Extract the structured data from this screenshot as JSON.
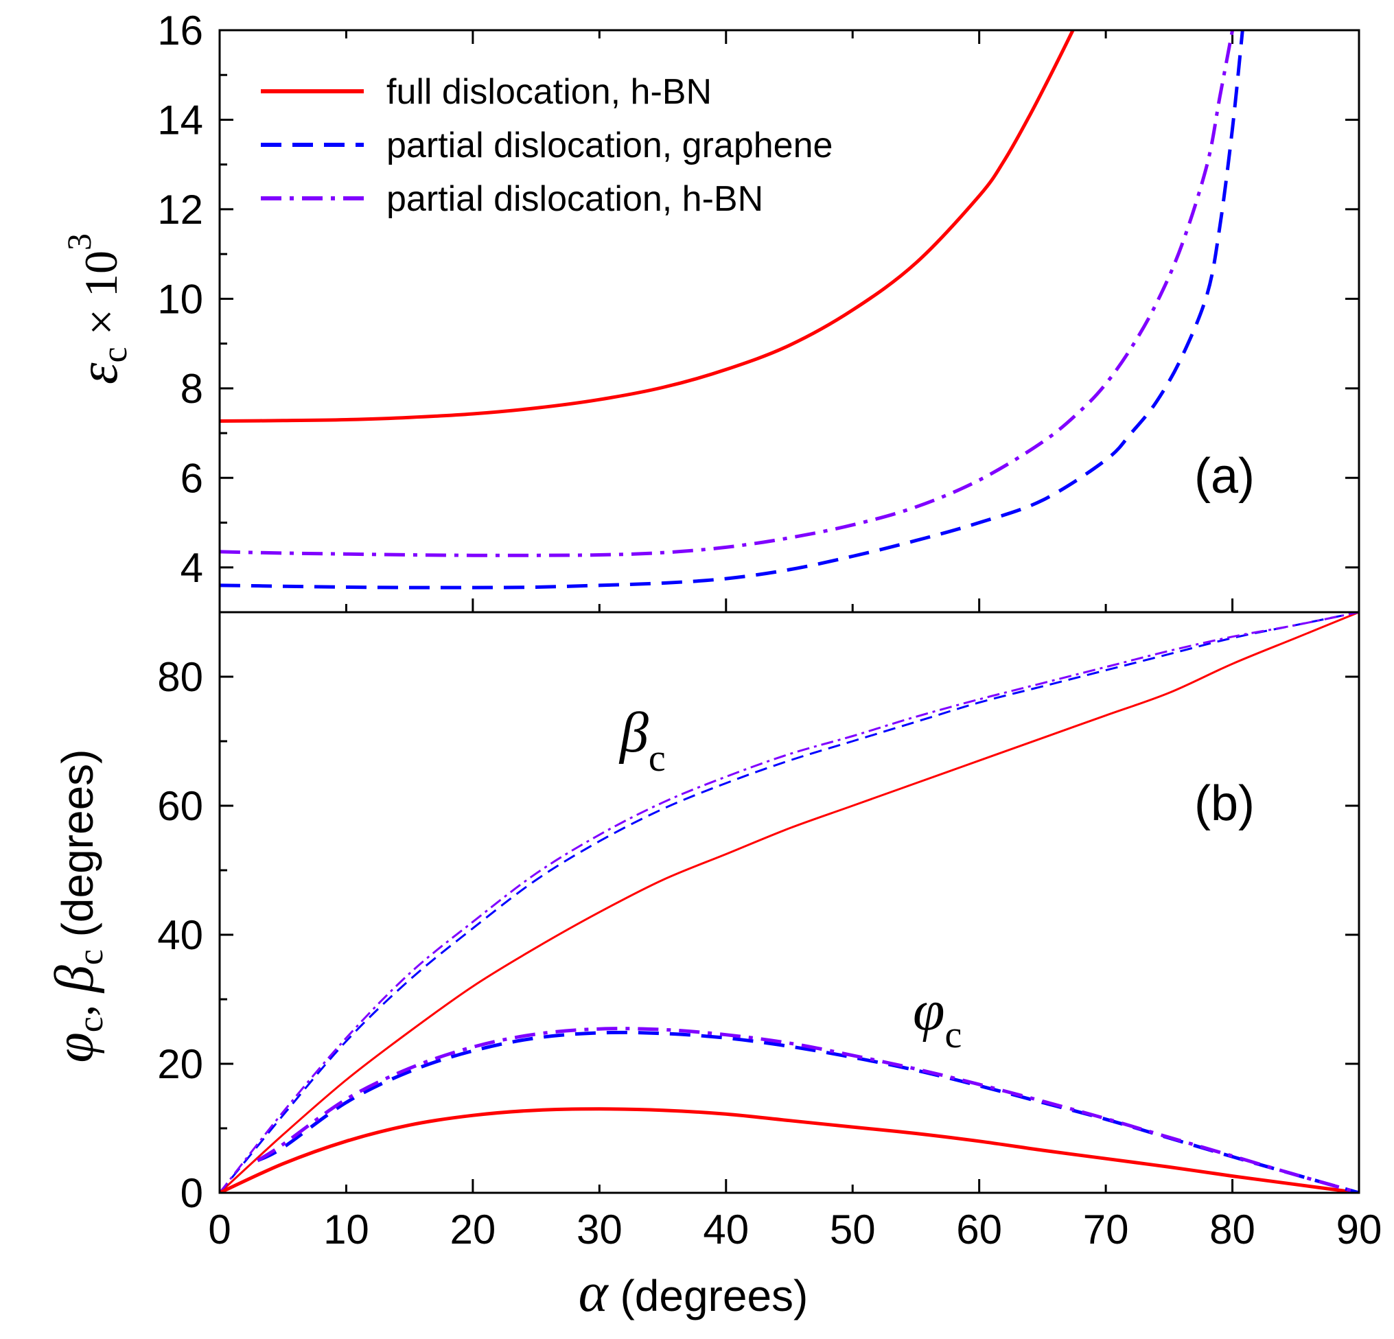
{
  "colors": {
    "full_hbn": "#ff0000",
    "partial_graphene": "#0000ff",
    "partial_hbn": "#8000ff",
    "axis": "#000000"
  },
  "chart_data": [
    {
      "id": "panel_a",
      "type": "line",
      "panel_label": "(a)",
      "ylabel": {
        "symbol": "ε",
        "subscript": "c",
        "suffix": " × 10",
        "superscript": "3"
      },
      "xlim": [
        0,
        90
      ],
      "ylim": [
        3,
        16
      ],
      "yticks": [
        4,
        6,
        8,
        10,
        12,
        14,
        16
      ],
      "yticks_minor": [
        3,
        5,
        7,
        9,
        11,
        13,
        15
      ],
      "xticks": [
        0,
        10,
        20,
        30,
        40,
        50,
        60,
        70,
        80,
        90
      ],
      "legend": {
        "position": "top-left",
        "entries": [
          {
            "series": "full",
            "label": "full dislocation, h-BN"
          },
          {
            "series": "partial_graphene",
            "label": "partial dislocation, graphene"
          },
          {
            "series": "partial_hbn",
            "label": "partial dislocation, h-BN"
          }
        ]
      },
      "series": [
        {
          "key": "full",
          "name": "full dislocation, h-BN",
          "color": "#ff0000",
          "style": "solid",
          "x": [
            0,
            5,
            10,
            15,
            20,
            25,
            30,
            35,
            40,
            45,
            50,
            55,
            60,
            62,
            64,
            66,
            67.4
          ],
          "y": [
            7.27,
            7.28,
            7.3,
            7.35,
            7.43,
            7.56,
            7.75,
            8.02,
            8.42,
            8.96,
            9.75,
            10.8,
            12.3,
            13.1,
            14.1,
            15.2,
            16
          ]
        },
        {
          "key": "partial_graphene",
          "name": "partial dislocation, graphene",
          "color": "#0000ff",
          "style": "dashed",
          "x": [
            0,
            5,
            10,
            15,
            20,
            25,
            30,
            35,
            40,
            45,
            50,
            55,
            60,
            65,
            70,
            72,
            74,
            76,
            78,
            79,
            80,
            80.8
          ],
          "y": [
            3.6,
            3.58,
            3.56,
            3.55,
            3.55,
            3.56,
            3.6,
            3.65,
            3.75,
            3.95,
            4.25,
            4.6,
            5.0,
            5.5,
            6.4,
            7.0,
            7.7,
            8.7,
            10.1,
            11.6,
            13.8,
            16
          ]
        },
        {
          "key": "partial_hbn",
          "name": "partial dislocation, h-BN",
          "color": "#8000ff",
          "style": "dashdot",
          "x": [
            0,
            5,
            10,
            15,
            20,
            25,
            30,
            35,
            40,
            45,
            50,
            55,
            60,
            65,
            68,
            70,
            72,
            74,
            76,
            78,
            79,
            80
          ],
          "y": [
            4.35,
            4.32,
            4.3,
            4.28,
            4.27,
            4.27,
            4.28,
            4.33,
            4.45,
            4.66,
            4.95,
            5.35,
            5.95,
            6.8,
            7.5,
            8.1,
            8.9,
            9.9,
            11.2,
            13.0,
            14.5,
            16
          ]
        }
      ]
    },
    {
      "id": "panel_b",
      "type": "line",
      "panel_label": "(b)",
      "xlabel": {
        "symbol": "α",
        "text": " (degrees)"
      },
      "ylabel": {
        "phi": "φ",
        "sub1": "c",
        "comma": ", ",
        "beta": "β",
        "sub2": "c",
        "text": " (degrees)"
      },
      "xlim": [
        0,
        90
      ],
      "ylim": [
        0,
        90
      ],
      "xticks": [
        0,
        10,
        20,
        30,
        40,
        50,
        60,
        70,
        80,
        90
      ],
      "yticks": [
        0,
        20,
        40,
        60,
        80
      ],
      "yticks_minor": [
        10,
        30,
        50,
        70
      ],
      "annotations": [
        {
          "symbol": "β",
          "subscript": "c",
          "near": "upper curves, x≈35"
        },
        {
          "symbol": "φ",
          "subscript": "c",
          "near": "lower curves, x≈57"
        }
      ],
      "series": [
        {
          "key": "beta_full",
          "name": "β_c full dislocation, h-BN",
          "color": "#ff0000",
          "style": "solid",
          "width": "thin",
          "x": [
            0,
            5,
            10,
            15,
            20,
            25,
            30,
            35,
            40,
            45,
            50,
            55,
            60,
            65,
            70,
            75,
            80,
            85,
            90
          ],
          "y": [
            0,
            9,
            17.5,
            25,
            32,
            38,
            43.5,
            48.5,
            52.5,
            56.5,
            60,
            63.5,
            67,
            70.5,
            74,
            77.5,
            82,
            86,
            90
          ]
        },
        {
          "key": "beta_graphene",
          "name": "β_c partial dislocation, graphene",
          "color": "#0000ff",
          "style": "dashed",
          "width": "thin",
          "x": [
            0,
            5,
            10,
            15,
            20,
            25,
            30,
            35,
            40,
            45,
            50,
            55,
            60,
            65,
            70,
            75,
            80,
            85,
            90
          ],
          "y": [
            0,
            12,
            23.5,
            33,
            41,
            48.5,
            54.5,
            59.5,
            63.5,
            67,
            70,
            73,
            76,
            78.5,
            81,
            83.5,
            86,
            88,
            90
          ]
        },
        {
          "key": "beta_hbn",
          "name": "β_c partial dislocation, h-BN",
          "color": "#8000ff",
          "style": "dashdot",
          "width": "thin",
          "x": [
            0,
            5,
            10,
            15,
            20,
            25,
            30,
            35,
            40,
            45,
            50,
            55,
            60,
            65,
            70,
            75,
            80,
            85,
            90
          ],
          "y": [
            0,
            12.5,
            24,
            34,
            42,
            49.5,
            55.5,
            60.5,
            64.5,
            68,
            70.8,
            73.8,
            76.5,
            79,
            81.5,
            84,
            86.2,
            88,
            90
          ]
        },
        {
          "key": "phi_full",
          "name": "φ_c full dislocation, h-BN",
          "color": "#ff0000",
          "style": "solid",
          "width": "thick",
          "x": [
            0,
            5,
            10,
            15,
            20,
            25,
            30,
            35,
            40,
            45,
            50,
            55,
            60,
            65,
            70,
            75,
            80,
            85,
            90
          ],
          "y": [
            0,
            4.5,
            8,
            10.5,
            12,
            12.8,
            13,
            12.8,
            12.2,
            11.2,
            10.2,
            9.2,
            8,
            6.6,
            5.3,
            4,
            2.6,
            1.3,
            0
          ]
        },
        {
          "key": "phi_graphene",
          "name": "φ_c partial dislocation, graphene",
          "color": "#0000ff",
          "style": "dashed",
          "width": "thick",
          "x": [
            3,
            5,
            10,
            15,
            20,
            25,
            30,
            35,
            40,
            45,
            50,
            55,
            60,
            65,
            70,
            75,
            80,
            85,
            90
          ],
          "y": [
            5,
            7,
            14,
            18.8,
            22,
            24,
            24.8,
            24.7,
            24,
            22.7,
            21,
            19,
            16.6,
            14,
            11.4,
            8.5,
            5.6,
            2.8,
            0
          ]
        },
        {
          "key": "phi_hbn",
          "name": "φ_c partial dislocation, h-BN",
          "color": "#8000ff",
          "style": "dashdot",
          "width": "thick",
          "x": [
            3,
            5,
            10,
            15,
            20,
            25,
            30,
            35,
            40,
            45,
            50,
            55,
            60,
            65,
            70,
            75,
            80,
            85,
            90
          ],
          "y": [
            5,
            7.5,
            14.5,
            19.3,
            22.6,
            24.6,
            25.4,
            25.3,
            24.5,
            23.2,
            21.3,
            19.2,
            16.8,
            14.2,
            11.5,
            8.6,
            5.7,
            2.8,
            0
          ]
        }
      ]
    }
  ]
}
